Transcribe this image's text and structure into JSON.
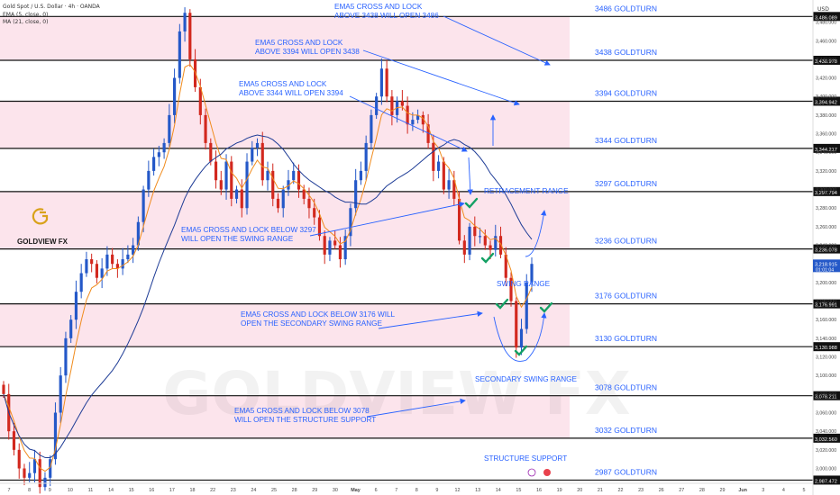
{
  "header": {
    "title": "Gold Spot / U.S. Dollar · 4h · OANDA",
    "ema": "EMA (5, close, 0)",
    "ma": "MA (21, close, 0)"
  },
  "currency": "USD",
  "brand": "GOLDVIEW FX",
  "watermark": "GOLDVIEW FX",
  "colors": {
    "band": "#fce4ec",
    "up_candle": "#2458c8",
    "down_candle": "#d2281e",
    "ema": "#f08c1e",
    "ma": "#1e3c96",
    "annotation": "#2962ff",
    "check": "#14a064",
    "level_line": "#111111"
  },
  "chart_data": {
    "type": "candlestick",
    "symbol": "Gold Spot / U.S. Dollar",
    "timeframe": "4h",
    "broker": "OANDA",
    "y_range": [
      2985,
      3498
    ],
    "y_ticks": [
      "3,480.000",
      "3,460.000",
      "3,440.000",
      "3,420.000",
      "3,400.000",
      "3,380.000",
      "3,360.000",
      "3,340.000",
      "3,320.000",
      "3,300.000",
      "3,280.000",
      "3,260.000",
      "3,240.000",
      "3,220.000",
      "3,200.000",
      "3,180.000",
      "3,160.000",
      "3,140.000",
      "3,120.000",
      "3,100.000",
      "3,080.000",
      "3,060.000",
      "3,040.000",
      "3,020.000",
      "3,000.000"
    ],
    "x_ticks": [
      "7",
      "8",
      "9",
      "10",
      "11",
      "14",
      "15",
      "16",
      "17",
      "18",
      "22",
      "23",
      "24",
      "25",
      "28",
      "29",
      "30",
      "May",
      "6",
      "7",
      "8",
      "9",
      "12",
      "13",
      "14",
      "15",
      "16",
      "19",
      "20",
      "21",
      "22",
      "23",
      "26",
      "27",
      "28",
      "29",
      "Jun",
      "3",
      "4",
      "5"
    ],
    "levels": [
      {
        "price": 3486.089,
        "tag": "3,486.089",
        "label": "3486 GOLDTURN"
      },
      {
        "price": 3438.978,
        "tag": "3,438.978",
        "label": "3438 GOLDTURN"
      },
      {
        "price": 3394.942,
        "tag": "3,394.942",
        "label": "3394 GOLDTURN"
      },
      {
        "price": 3344.217,
        "tag": "3,344.217",
        "label": "3344 GOLDTURN"
      },
      {
        "price": 3297.794,
        "tag": "3,297.794",
        "label": "3297 GOLDTURN"
      },
      {
        "price": 3236.078,
        "tag": "3,236.078",
        "label": "3236 GOLDTURN"
      },
      {
        "price": 3176.991,
        "tag": "3,176.991",
        "label": "3176 GOLDTURN"
      },
      {
        "price": 3130.988,
        "tag": "3,130.988",
        "label": "3130 GOLDTURN"
      },
      {
        "price": 3078.211,
        "tag": "3,078.211",
        "label": "3078 GOLDTURN"
      },
      {
        "price": 3032.56,
        "tag": "3,032.560",
        "label": "3032 GOLDTURN"
      },
      {
        "price": 2987.472,
        "tag": "2,987.472",
        "label": "2987 GOLDTURN"
      }
    ],
    "current_price": {
      "price": "3,218.915",
      "timer": "01:01:04"
    },
    "annotations": [
      {
        "lines": [
          "EMA5 CROSS AND LOCK",
          "ABOVE 3438 WILL OPEN 3486"
        ]
      },
      {
        "lines": [
          "EMA5 CROSS AND LOCK",
          "ABOVE 3394 WILL OPEN 3438"
        ]
      },
      {
        "lines": [
          "EMA5 CROSS AND LOCK",
          "ABOVE 3344 WILL OPEN 3394"
        ]
      },
      {
        "lines": [
          "EMA5 CROSS AND LOCK BELOW 3297",
          "WILL OPEN THE SWING RANGE"
        ]
      },
      {
        "lines": [
          "EMA5 CROSS AND LOCK BELOW 3176 WILL",
          "OPEN THE SECONDARY SWING RANGE"
        ]
      },
      {
        "lines": [
          "EMA5 CROSS AND LOCK BELOW 3078",
          "WILL OPEN THE STRUCTURE SUPPORT"
        ]
      }
    ],
    "zone_labels": [
      "RETRACEMENT RANGE",
      "SWING RANGE",
      "SECONDARY SWING RANGE",
      "STRUCTURE SUPPORT"
    ],
    "series": [
      {
        "name": "Gold Spot / U.S. Dollar",
        "close": [
          3080,
          3040,
          3020,
          3000,
          2990,
          2995,
          3010,
          2980,
          2990,
          3010,
          3060,
          3100,
          3140,
          3160,
          3190,
          3210,
          3225,
          3220,
          3205,
          3215,
          3230,
          3220,
          3215,
          3225,
          3230,
          3240,
          3265,
          3300,
          3320,
          3335,
          3340,
          3350,
          3380,
          3420,
          3470,
          3490,
          3440,
          3410,
          3380,
          3350,
          3330,
          3310,
          3300,
          3330,
          3290,
          3300,
          3280,
          3330,
          3345,
          3350,
          3310,
          3320,
          3290,
          3280,
          3300,
          3310,
          3320,
          3300,
          3290,
          3280,
          3270,
          3250,
          3230,
          3245,
          3240,
          3225,
          3250,
          3280,
          3310,
          3320,
          3350,
          3380,
          3400,
          3430,
          3400,
          3380,
          3395,
          3390,
          3370,
          3375,
          3380,
          3370,
          3350,
          3320,
          3330,
          3300,
          3310,
          3290,
          3245,
          3230,
          3260,
          3250,
          3250,
          3240,
          3235,
          3250,
          3230,
          3205,
          3180,
          3130,
          3150,
          3200,
          3220
        ]
      }
    ]
  }
}
